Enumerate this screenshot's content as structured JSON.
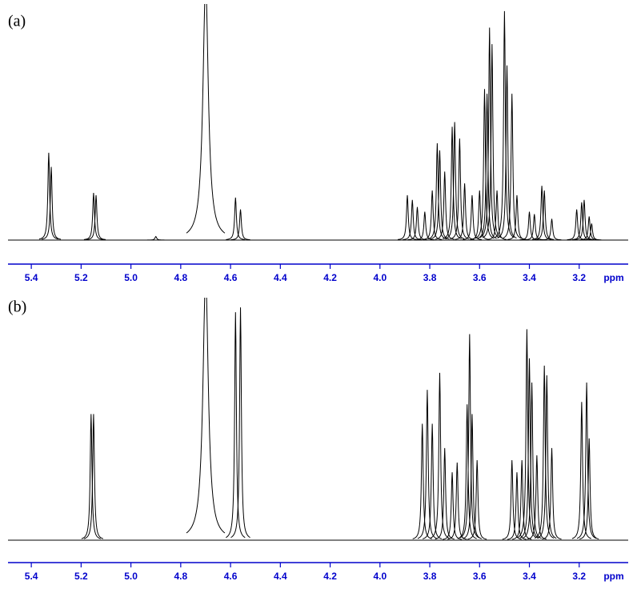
{
  "chart_data": [
    {
      "type": "spectrum",
      "title": "(a)",
      "x_label": "ppm",
      "color": "#000000",
      "axis_color": "#0000cc",
      "xlim": [
        5.5,
        3.0
      ],
      "ylim": [
        0,
        100
      ],
      "xticks": [
        5.4,
        5.2,
        {
          "value": 5,
          "label": "5.0"
        },
        4.8,
        4.6,
        4.4,
        4.2,
        {
          "value": 4,
          "label": "4.0"
        },
        3.8,
        3.6,
        3.4,
        3.2
      ],
      "x": [
        5.33,
        5.32,
        5.15,
        5.14,
        4.9,
        4.7,
        4.58,
        4.56,
        3.89,
        3.87,
        3.85,
        3.82,
        3.79,
        3.77,
        3.76,
        3.74,
        3.71,
        3.7,
        3.68,
        3.66,
        3.63,
        3.6,
        3.58,
        3.57,
        3.56,
        3.55,
        3.53,
        3.5,
        3.49,
        3.47,
        3.45,
        3.4,
        3.38,
        3.35,
        3.34,
        3.31,
        3.21,
        3.19,
        3.18,
        3.16,
        3.15
      ],
      "values": [
        37,
        31,
        20,
        19,
        1.5,
        110,
        18,
        13,
        19,
        17,
        14,
        12,
        21,
        41,
        38,
        29,
        48,
        50,
        43,
        24,
        19,
        21,
        64,
        62,
        90,
        83,
        21,
        97,
        74,
        62,
        19,
        12,
        11,
        23,
        21,
        9,
        13,
        16,
        17,
        10,
        7
      ]
    },
    {
      "type": "spectrum",
      "title": "(b)",
      "x_label": "ppm",
      "color": "#000000",
      "axis_color": "#0000cc",
      "xlim": [
        5.5,
        3.0
      ],
      "ylim": [
        0,
        100
      ],
      "xticks": [
        5.4,
        5.2,
        {
          "value": 5,
          "label": "5.0"
        },
        4.8,
        4.6,
        4.4,
        4.2,
        {
          "value": 4,
          "label": "4.0"
        },
        3.8,
        3.6,
        3.4,
        3.2
      ],
      "x": [
        5.16,
        5.15,
        4.7,
        4.58,
        4.56,
        3.83,
        3.81,
        3.79,
        3.76,
        3.74,
        3.71,
        3.69,
        3.65,
        3.64,
        3.63,
        3.61,
        3.47,
        3.45,
        3.43,
        3.41,
        3.4,
        3.39,
        3.37,
        3.34,
        3.33,
        3.31,
        3.19,
        3.17,
        3.16
      ],
      "values": [
        52,
        52,
        110,
        94,
        96,
        48,
        62,
        48,
        69,
        38,
        28,
        32,
        56,
        85,
        52,
        33,
        33,
        28,
        33,
        87,
        75,
        65,
        35,
        72,
        68,
        38,
        57,
        65,
        42
      ]
    }
  ]
}
